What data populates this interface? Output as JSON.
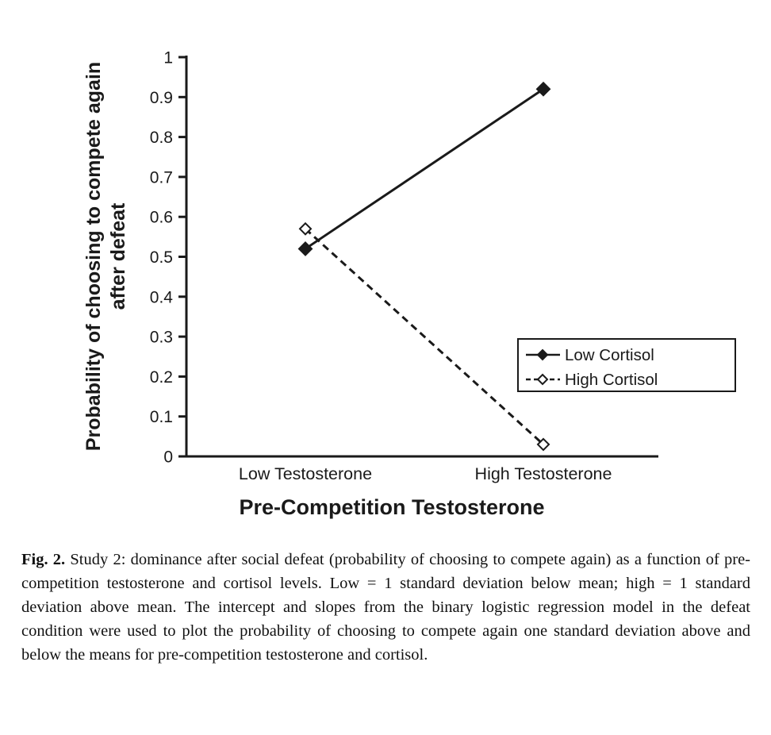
{
  "figure": {
    "caption_label": "Fig. 2.",
    "caption_text": "Study 2: dominance after social defeat (probability of choosing to compete again) as a function of pre-competition testosterone and cortisol levels. Low = 1 standard deviation below mean; high = 1 standard deviation above mean. The intercept and slopes from the binary logistic regression model in the defeat condition were used to plot the probability of choosing to compete again one standard deviation above and below the means for pre-competition testosterone and cortisol."
  },
  "chart_data": {
    "type": "line",
    "title": "",
    "categories": [
      "Low Testosterone",
      "High Testosterone"
    ],
    "series": [
      {
        "name": "Low Cortisol",
        "values": [
          0.52,
          0.92
        ],
        "line_style": "solid",
        "marker": "filled-diamond"
      },
      {
        "name": "High Cortisol",
        "values": [
          0.57,
          0.03
        ],
        "line_style": "dashed",
        "marker": "open-diamond"
      }
    ],
    "xlabel": "Pre-Competition Testosterone",
    "ylabel": "Probability of choosing to compete again after defeat",
    "ylabel_lines": [
      "Probability of choosing to compete again",
      "after defeat"
    ],
    "ylim": [
      0,
      1
    ],
    "ytick_values": [
      0,
      0.1,
      0.2,
      0.3,
      0.4,
      0.5,
      0.6,
      0.7,
      0.8,
      0.9,
      1
    ],
    "ytick_labels": [
      "0",
      "0.1",
      "0.2",
      "0.3",
      "0.4",
      "0.5",
      "0.6",
      "0.7",
      "0.8",
      "0.9",
      "1"
    ],
    "grid": false,
    "legend_position": "middle-right",
    "legend_entries": [
      "Low Cortisol",
      "High Cortisol"
    ],
    "axis_color": "#1a1a1a"
  }
}
